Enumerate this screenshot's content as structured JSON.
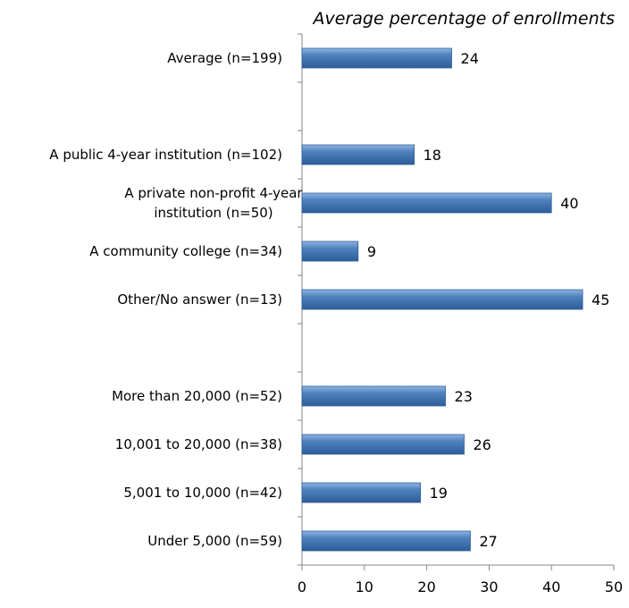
{
  "chart_data": {
    "type": "bar",
    "orientation": "horizontal",
    "title": "Average percentage of enrollments",
    "xlabel": "",
    "ylabel": "",
    "xlim": [
      0,
      50
    ],
    "x_ticks": [
      0,
      10,
      20,
      30,
      40,
      50
    ],
    "grid": false,
    "legend": "none",
    "bar_color": "#4F81BD",
    "slots": [
      {
        "category": [
          "Average (n=199)"
        ],
        "value": 24
      },
      null,
      {
        "category": [
          "A public 4-year institution (n=102)"
        ],
        "value": 18
      },
      {
        "category": [
          "A private non-profit 4-year",
          "institution (n=50)"
        ],
        "value": 40
      },
      {
        "category": [
          "A community college (n=34)"
        ],
        "value": 9
      },
      {
        "category": [
          "Other/No answer (n=13)"
        ],
        "value": 45
      },
      null,
      {
        "category": [
          "More than 20,000 (n=52)"
        ],
        "value": 23
      },
      {
        "category": [
          "10,001 to 20,000 (n=38)"
        ],
        "value": 26
      },
      {
        "category": [
          "5,001 to 10,000 (n=42)"
        ],
        "value": 19
      },
      {
        "category": [
          "Under 5,000 (n=59)"
        ],
        "value": 27
      }
    ]
  }
}
